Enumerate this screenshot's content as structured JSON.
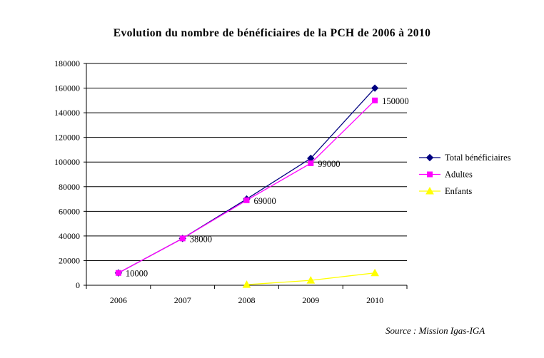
{
  "chart_data": {
    "type": "line",
    "title": "Evolution du nombre de bénéficiaires de la PCH de 2006 à 2010",
    "x": [
      "2006",
      "2007",
      "2008",
      "2009",
      "2010"
    ],
    "ylim": [
      0,
      180000
    ],
    "yticks": [
      "0",
      "20000",
      "40000",
      "60000",
      "80000",
      "100000",
      "120000",
      "140000",
      "160000",
      "180000"
    ],
    "grid": true,
    "legend_position": "right",
    "series": [
      {
        "name": "Total bénéficiaires",
        "color": "#000080",
        "marker": "diamond",
        "values": [
          10000,
          38000,
          70000,
          103000,
          160000
        ]
      },
      {
        "name": "Adultes",
        "color": "#ff00ff",
        "marker": "square",
        "values": [
          10000,
          38000,
          69000,
          99000,
          150000
        ]
      },
      {
        "name": "Enfants",
        "color": "#ffff00",
        "marker": "triangle",
        "values": [
          null,
          null,
          500,
          4000,
          10000
        ]
      }
    ],
    "data_labels": [
      {
        "x": "2006",
        "text": "10000",
        "value": 10000
      },
      {
        "x": "2007",
        "text": "38000",
        "value": 38000
      },
      {
        "x": "2008",
        "text": "69000",
        "value": 69000
      },
      {
        "x": "2009",
        "text": "99000",
        "value": 99000
      },
      {
        "x": "2010",
        "text": "150000",
        "value": 150000
      }
    ]
  },
  "source": "Source : Mission Igas-IGA"
}
